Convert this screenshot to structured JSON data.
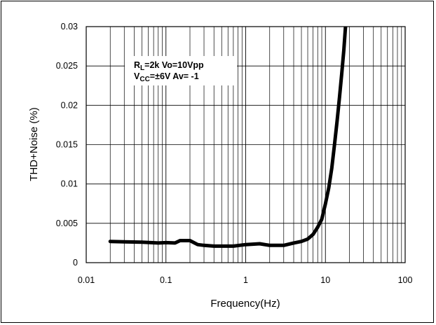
{
  "chart_data": {
    "type": "line",
    "xlabel": "Frequency(Hz)",
    "ylabel": "THD+Noise (%)",
    "x_scale": "log",
    "xlim": [
      0.01,
      100
    ],
    "ylim": [
      0,
      0.03
    ],
    "grid": true,
    "x_ticks": [
      {
        "value": 0.01,
        "label": "0.01"
      },
      {
        "value": 0.1,
        "label": "0.1"
      },
      {
        "value": 1,
        "label": "1"
      },
      {
        "value": 10,
        "label": "10"
      },
      {
        "value": 100,
        "label": "100"
      }
    ],
    "y_ticks": [
      {
        "value": 0,
        "label": "0"
      },
      {
        "value": 0.005,
        "label": "0.005"
      },
      {
        "value": 0.01,
        "label": "0.01"
      },
      {
        "value": 0.015,
        "label": "0.015"
      },
      {
        "value": 0.02,
        "label": "0.02"
      },
      {
        "value": 0.025,
        "label": "0.025"
      },
      {
        "value": 0.03,
        "label": "0.03"
      }
    ],
    "annotation": {
      "line1": {
        "p1": "R",
        "sub1": "L",
        "p2": "=2k  Vo=10Vpp"
      },
      "line2": {
        "p1": "V",
        "sub1": "CC",
        "p2": "=±6V  Av= -1"
      }
    },
    "series": [
      {
        "color": "#000000",
        "x": [
          0.02,
          0.03,
          0.05,
          0.08,
          0.1,
          0.13,
          0.15,
          0.2,
          0.25,
          0.3,
          0.4,
          0.5,
          0.7,
          1.0,
          1.5,
          2.0,
          3.0,
          4.0,
          5.0,
          6.0,
          7.0,
          8.0,
          9.0,
          10.0,
          11.0,
          12.0,
          13.0,
          14.0,
          15.0,
          16.0,
          17.0,
          18.0
        ],
        "y": [
          0.0027,
          0.00265,
          0.0026,
          0.0025,
          0.00255,
          0.0025,
          0.0028,
          0.0028,
          0.0023,
          0.0022,
          0.0021,
          0.0021,
          0.0021,
          0.0023,
          0.0024,
          0.0022,
          0.0022,
          0.0025,
          0.0027,
          0.003,
          0.0036,
          0.0045,
          0.0055,
          0.0075,
          0.0095,
          0.012,
          0.015,
          0.018,
          0.021,
          0.024,
          0.027,
          0.0305
        ]
      }
    ]
  }
}
